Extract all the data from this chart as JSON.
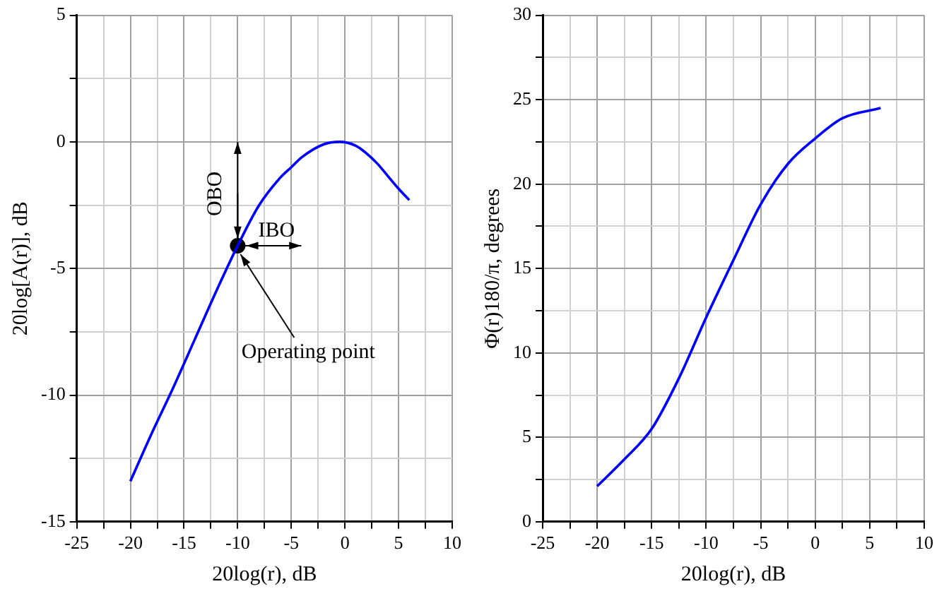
{
  "chart_data": [
    {
      "type": "line",
      "xlabel": "20log(r), dB",
      "ylabel": "20log[A(r)], dB",
      "xlim": [
        -25,
        10
      ],
      "ylim": [
        -15,
        5
      ],
      "xticks": [
        -25,
        {
          "value": -22.5,
          "label": null
        },
        -20,
        {
          "value": -17.5,
          "label": null
        },
        -15,
        {
          "value": -12.5,
          "label": null
        },
        -10,
        {
          "value": -7.5,
          "label": null
        },
        -5,
        {
          "value": -2.5,
          "label": null
        },
        0,
        {
          "value": 2.5,
          "label": null
        },
        5,
        {
          "value": 7.5,
          "label": null
        },
        10
      ],
      "yticks": [
        -15,
        {
          "value": -12.5,
          "label": null
        },
        -10,
        {
          "value": -7.5,
          "label": null
        },
        -5,
        {
          "value": -2.5,
          "label": null
        },
        0,
        {
          "value": 2.5,
          "label": null
        },
        5
      ],
      "grid": true,
      "marker": "none",
      "line_style": "solid",
      "series": [
        {
          "type": "line",
          "color": "#0000ff",
          "x": [
            -20,
            -18,
            -16,
            -14,
            -12,
            -10,
            -8,
            -6,
            -5,
            -4,
            -2,
            -0.5,
            1,
            2,
            3,
            4,
            5,
            6
          ],
          "values": [
            -13.4,
            -11.5,
            -9.7,
            -7.8,
            -5.9,
            -4.1,
            -2.5,
            -1.4,
            -1.0,
            -0.6,
            -0.1,
            0,
            -0.15,
            -0.45,
            -0.85,
            -1.35,
            -1.85,
            -2.3
          ]
        },
        {
          "type": "scatter",
          "color": "#000000",
          "marker": "circle",
          "x": [
            -10
          ],
          "values": [
            -4.1
          ]
        }
      ],
      "annotations": [
        "OBO",
        "IBO",
        {
          "text": "Operating point",
          "x": -10,
          "y": -4.1
        }
      ]
    },
    {
      "type": "line",
      "xlabel": "20log(r), dB",
      "ylabel": "Φ(r)180/π, degrees",
      "xlim": [
        -25,
        10
      ],
      "ylim": [
        0,
        30
      ],
      "xticks": [
        -25,
        {
          "value": -22.5,
          "label": null
        },
        -20,
        {
          "value": -17.5,
          "label": null
        },
        -15,
        {
          "value": -12.5,
          "label": null
        },
        -10,
        {
          "value": -7.5,
          "label": null
        },
        -5,
        {
          "value": -2.5,
          "label": null
        },
        0,
        {
          "value": 2.5,
          "label": null
        },
        5,
        {
          "value": 7.5,
          "label": null
        },
        10
      ],
      "yticks": [
        0,
        {
          "value": 2.5,
          "label": null
        },
        5,
        {
          "value": 7.5,
          "label": null
        },
        10,
        {
          "value": 12.5,
          "label": null
        },
        15,
        {
          "value": 17.5,
          "label": null
        },
        20,
        {
          "value": 22.5,
          "label": null
        },
        25,
        {
          "value": 27.5,
          "label": null
        },
        30
      ],
      "grid": true,
      "marker": "none",
      "line_style": "solid",
      "series": [
        {
          "type": "line",
          "color": "#0000ff",
          "x": [
            -20,
            -17.5,
            -15,
            -12.5,
            -10,
            -7.5,
            -5,
            -2.5,
            0,
            2.5,
            6
          ],
          "values": [
            2.1,
            3.7,
            5.5,
            8.5,
            12.1,
            15.5,
            18.8,
            21.2,
            22.7,
            23.9,
            24.5
          ]
        }
      ]
    }
  ]
}
